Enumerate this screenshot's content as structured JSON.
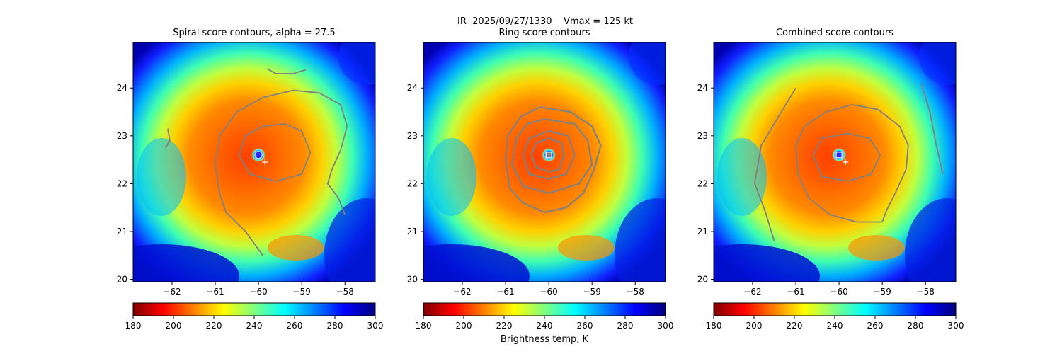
{
  "figure": {
    "suptitle": "IR  2025/09/27/1330    Vmax = 125 kt",
    "colorbar_label": "Brightness temp, K",
    "colormap": [
      "#7f0000",
      "#ff0000",
      "#ff8000",
      "#ffff00",
      "#80ff80",
      "#00ffff",
      "#0080ff",
      "#0000ff",
      "#00007f"
    ]
  },
  "chart_data": [
    {
      "type": "heatmap",
      "title": "Spiral score contours, alpha = 27.5",
      "xlabel": "",
      "ylabel": "",
      "xlim": [
        -62.9,
        -57.3
      ],
      "ylim": [
        19.95,
        24.95
      ],
      "xticks": [
        -62,
        -61,
        -60,
        -59,
        -58
      ],
      "yticks": [
        20,
        21,
        22,
        23,
        24
      ],
      "colorbar": {
        "range": [
          180,
          300
        ],
        "ticks": [
          180,
          200,
          220,
          240,
          260,
          280,
          300
        ]
      },
      "center_marker": {
        "type": "circle",
        "x": -60.0,
        "y": 22.6
      },
      "best_track_marker": {
        "type": "plus",
        "x": -59.85,
        "y": 22.45
      },
      "contours": [
        {
          "level": "outer-spiral",
          "points": [
            [
              -60.9,
              21.8
            ],
            [
              -60.75,
              21.4
            ],
            [
              -60.3,
              21.0
            ],
            [
              -60.1,
              20.75
            ],
            [
              -59.9,
              20.5
            ]
          ]
        },
        {
          "level": "outer-ring",
          "points": [
            [
              -60.9,
              21.8
            ],
            [
              -61.0,
              22.4
            ],
            [
              -60.9,
              23.0
            ],
            [
              -60.5,
              23.5
            ],
            [
              -59.9,
              23.8
            ],
            [
              -59.2,
              23.95
            ],
            [
              -58.6,
              23.9
            ],
            [
              -58.1,
              23.65
            ],
            [
              -57.95,
              23.2
            ],
            [
              -58.1,
              22.7
            ],
            [
              -58.3,
              22.3
            ],
            [
              -58.4,
              22.0
            ],
            [
              -58.15,
              21.7
            ],
            [
              -58.0,
              21.35
            ]
          ]
        },
        {
          "level": "inner-ring",
          "points": [
            [
              -59.4,
              23.25
            ],
            [
              -59.0,
              23.1
            ],
            [
              -58.8,
              22.65
            ],
            [
              -59.0,
              22.2
            ],
            [
              -59.6,
              22.05
            ],
            [
              -60.2,
              22.2
            ],
            [
              -60.45,
              22.6
            ],
            [
              -60.3,
              23.0
            ],
            [
              -59.9,
              23.2
            ],
            [
              -59.4,
              23.25
            ]
          ]
        },
        {
          "level": "north-fragment",
          "points": [
            [
              -59.8,
              24.4
            ],
            [
              -59.6,
              24.3
            ],
            [
              -59.2,
              24.3
            ],
            [
              -58.9,
              24.38
            ]
          ]
        },
        {
          "level": "west-fragment",
          "points": [
            [
              -62.15,
              22.75
            ],
            [
              -62.05,
              22.9
            ],
            [
              -62.1,
              23.15
            ]
          ]
        }
      ]
    },
    {
      "type": "heatmap",
      "title": "Ring score contours",
      "xlabel": "",
      "ylabel": "",
      "xlim": [
        -62.9,
        -57.3
      ],
      "ylim": [
        19.95,
        24.95
      ],
      "xticks": [
        -62,
        -61,
        -60,
        -59,
        -58
      ],
      "yticks": [
        20,
        21,
        22,
        23,
        24
      ],
      "colorbar": {
        "range": [
          180,
          300
        ],
        "ticks": [
          180,
          200,
          220,
          240,
          260,
          280,
          300
        ]
      },
      "center_marker": {
        "type": "square",
        "x": -60.0,
        "y": 22.6
      },
      "contours": [
        {
          "level": "ring-1",
          "points": [
            [
              -60.0,
              22.95
            ],
            [
              -59.7,
              22.85
            ],
            [
              -59.65,
              22.6
            ],
            [
              -59.75,
              22.3
            ],
            [
              -60.0,
              22.25
            ],
            [
              -60.3,
              22.35
            ],
            [
              -60.4,
              22.6
            ],
            [
              -60.3,
              22.85
            ],
            [
              -60.0,
              22.95
            ]
          ]
        },
        {
          "level": "ring-2",
          "points": [
            [
              -60.0,
              23.1
            ],
            [
              -59.55,
              23.0
            ],
            [
              -59.4,
              22.6
            ],
            [
              -59.6,
              22.2
            ],
            [
              -60.0,
              22.1
            ],
            [
              -60.45,
              22.2
            ],
            [
              -60.6,
              22.6
            ],
            [
              -60.45,
              22.95
            ],
            [
              -60.0,
              23.1
            ]
          ]
        },
        {
          "level": "ring-3",
          "points": [
            [
              -60.1,
              23.35
            ],
            [
              -59.4,
              23.25
            ],
            [
              -59.1,
              22.9
            ],
            [
              -59.0,
              22.4
            ],
            [
              -59.3,
              22.0
            ],
            [
              -60.0,
              21.8
            ],
            [
              -60.6,
              21.95
            ],
            [
              -60.85,
              22.4
            ],
            [
              -60.75,
              22.95
            ],
            [
              -60.5,
              23.25
            ],
            [
              -60.1,
              23.35
            ]
          ]
        },
        {
          "level": "ring-4",
          "points": [
            [
              -60.2,
              23.6
            ],
            [
              -59.5,
              23.5
            ],
            [
              -59.0,
              23.2
            ],
            [
              -58.8,
              22.8
            ],
            [
              -58.95,
              22.3
            ],
            [
              -59.2,
              21.8
            ],
            [
              -59.6,
              21.5
            ],
            [
              -60.1,
              21.4
            ],
            [
              -60.6,
              21.6
            ],
            [
              -60.9,
              21.9
            ],
            [
              -61.0,
              22.5
            ],
            [
              -60.95,
              23.0
            ],
            [
              -60.65,
              23.4
            ],
            [
              -60.2,
              23.6
            ]
          ]
        }
      ]
    },
    {
      "type": "heatmap",
      "title": "Combined score contours",
      "xlabel": "",
      "ylabel": "",
      "xlim": [
        -62.9,
        -57.3
      ],
      "ylim": [
        19.95,
        24.95
      ],
      "xticks": [
        -62,
        -61,
        -60,
        -59,
        -58
      ],
      "yticks": [
        20,
        21,
        22,
        23,
        24
      ],
      "colorbar": {
        "range": [
          180,
          300
        ],
        "ticks": [
          180,
          200,
          220,
          240,
          260,
          280,
          300
        ]
      },
      "center_marker": {
        "type": "square",
        "x": -60.0,
        "y": 22.6
      },
      "best_track_marker": {
        "type": "plus",
        "x": -59.85,
        "y": 22.45
      },
      "contours": [
        {
          "level": "inner-ring",
          "points": [
            [
              -59.8,
              23.05
            ],
            [
              -59.3,
              22.95
            ],
            [
              -59.05,
              22.6
            ],
            [
              -59.25,
              22.2
            ],
            [
              -59.8,
              22.05
            ],
            [
              -60.4,
              22.15
            ],
            [
              -60.6,
              22.6
            ],
            [
              -60.4,
              22.95
            ],
            [
              -59.8,
              23.05
            ]
          ]
        },
        {
          "level": "outer-ring",
          "points": [
            [
              -59.0,
              21.2
            ],
            [
              -59.6,
              21.2
            ],
            [
              -60.2,
              21.35
            ],
            [
              -60.7,
              21.7
            ],
            [
              -60.95,
              22.2
            ],
            [
              -61.0,
              22.8
            ],
            [
              -60.8,
              23.2
            ],
            [
              -60.3,
              23.5
            ],
            [
              -59.7,
              23.65
            ],
            [
              -59.1,
              23.55
            ],
            [
              -58.6,
              23.2
            ],
            [
              -58.4,
              22.8
            ],
            [
              -58.45,
              22.3
            ],
            [
              -58.7,
              21.8
            ],
            [
              -58.9,
              21.45
            ],
            [
              -59.0,
              21.2
            ]
          ]
        },
        {
          "level": "west-spiral",
          "points": [
            [
              -61.0,
              24.0
            ],
            [
              -61.4,
              23.4
            ],
            [
              -61.8,
              22.8
            ],
            [
              -61.95,
              22.0
            ],
            [
              -61.7,
              21.4
            ],
            [
              -61.5,
              20.8
            ]
          ]
        },
        {
          "level": "east-spiral",
          "points": [
            [
              -58.1,
              24.1
            ],
            [
              -57.9,
              23.5
            ],
            [
              -57.75,
              22.8
            ],
            [
              -57.6,
              22.2
            ]
          ]
        }
      ]
    }
  ]
}
